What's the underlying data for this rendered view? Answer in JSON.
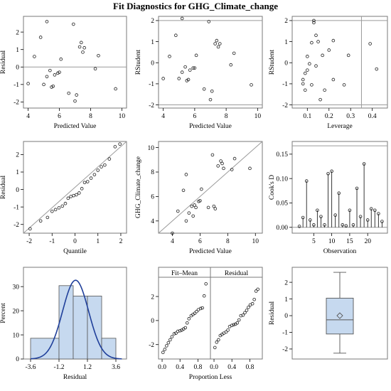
{
  "title": "Fit Diagnostics for GHG_Climate_change",
  "colors": {
    "frame": "#7a7a7a",
    "ref": "#9a9a9a",
    "marker": "#222222",
    "hist_fill": "#c6d9ef",
    "hist_stroke": "#555555",
    "curve": "#1f3f9a"
  },
  "chart_data": [
    {
      "id": "p1",
      "type": "scatter",
      "ylabel": "Residual",
      "xlabel": "Predicted Value",
      "xlim": [
        3.7,
        10.3
      ],
      "ylim": [
        -2.35,
        2.9
      ],
      "xticks": [
        4,
        6,
        8,
        10
      ],
      "yticks": [
        -2,
        -1,
        0,
        1,
        2
      ],
      "hlines": [
        0
      ],
      "points": [
        [
          4.0,
          -0.95
        ],
        [
          4.4,
          0.6
        ],
        [
          4.8,
          1.7
        ],
        [
          5.0,
          -1.0
        ],
        [
          5.2,
          2.6
        ],
        [
          5.2,
          -0.55
        ],
        [
          5.4,
          -0.2
        ],
        [
          5.5,
          -1.15
        ],
        [
          5.6,
          -1.1
        ],
        [
          5.7,
          -0.45
        ],
        [
          5.9,
          -0.35
        ],
        [
          6.0,
          -0.3
        ],
        [
          6.1,
          0.45
        ],
        [
          6.6,
          -1.5
        ],
        [
          6.9,
          2.45
        ],
        [
          7.0,
          -1.95
        ],
        [
          7.1,
          -1.6
        ],
        [
          7.3,
          1.15
        ],
        [
          7.4,
          1.4
        ],
        [
          7.5,
          0.85
        ],
        [
          7.6,
          1.1
        ],
        [
          8.3,
          -0.1
        ],
        [
          8.5,
          0.65
        ],
        [
          9.6,
          -1.25
        ]
      ]
    },
    {
      "id": "p2",
      "type": "scatter",
      "ylabel": "RStudent",
      "xlabel": "Predicted Value",
      "xlim": [
        3.7,
        10.3
      ],
      "ylim": [
        -2.15,
        2.2
      ],
      "xticks": [
        4,
        6,
        8,
        10
      ],
      "yticks": [
        -2,
        -1,
        0,
        1,
        2
      ],
      "hlines": [
        -2,
        2
      ],
      "points": [
        [
          4.0,
          -0.75
        ],
        [
          4.4,
          0.3
        ],
        [
          4.8,
          1.3
        ],
        [
          5.0,
          -0.75
        ],
        [
          5.2,
          2.1
        ],
        [
          5.2,
          -0.45
        ],
        [
          5.4,
          -0.2
        ],
        [
          5.5,
          -0.85
        ],
        [
          5.6,
          -0.8
        ],
        [
          5.7,
          -0.35
        ],
        [
          5.9,
          -0.25
        ],
        [
          6.0,
          -0.25
        ],
        [
          6.1,
          0.35
        ],
        [
          6.6,
          -1.25
        ],
        [
          6.9,
          1.95
        ],
        [
          7.0,
          -1.75
        ],
        [
          7.1,
          -1.35
        ],
        [
          7.3,
          0.9
        ],
        [
          7.4,
          1.05
        ],
        [
          7.5,
          0.75
        ],
        [
          7.6,
          0.9
        ],
        [
          8.3,
          -0.1
        ],
        [
          8.5,
          0.45
        ],
        [
          9.6,
          -1.05
        ]
      ]
    },
    {
      "id": "p3",
      "type": "scatter",
      "ylabel": "RStudent",
      "xlabel": "Leverage",
      "xlim": [
        0.03,
        0.47
      ],
      "ylim": [
        -2.15,
        2.2
      ],
      "xticks": [
        0.1,
        0.2,
        0.3,
        0.4
      ],
      "yticks": [
        -2,
        -1,
        0,
        1,
        2
      ],
      "hlines": [
        -2,
        2
      ],
      "vlines": [
        0.35
      ],
      "points": [
        [
          0.08,
          -1.0
        ],
        [
          0.08,
          -0.8
        ],
        [
          0.09,
          -0.5
        ],
        [
          0.09,
          -1.3
        ],
        [
          0.1,
          -0.35
        ],
        [
          0.1,
          0.3
        ],
        [
          0.11,
          -0.05
        ],
        [
          0.12,
          -1.05
        ],
        [
          0.12,
          0.95
        ],
        [
          0.13,
          2.0
        ],
        [
          0.13,
          1.9
        ],
        [
          0.14,
          1.3
        ],
        [
          0.14,
          -0.15
        ],
        [
          0.15,
          1.0
        ],
        [
          0.16,
          -1.75
        ],
        [
          0.17,
          0.35
        ],
        [
          0.18,
          -1.3
        ],
        [
          0.2,
          0.6
        ],
        [
          0.22,
          -0.8
        ],
        [
          0.22,
          1.05
        ],
        [
          0.27,
          -1.05
        ],
        [
          0.29,
          0.35
        ],
        [
          0.39,
          0.9
        ],
        [
          0.42,
          -0.3
        ]
      ]
    },
    {
      "id": "p4",
      "type": "scatter",
      "ylabel": "Residual",
      "xlabel": "Quantile",
      "xlim": [
        -2.25,
        2.25
      ],
      "ylim": [
        -2.5,
        2.75
      ],
      "xticks": [
        -2,
        -1,
        0,
        1,
        2
      ],
      "yticks": [
        -2,
        -1,
        0,
        1,
        2
      ],
      "refline": [
        [
          -2.25,
          -2.5
        ],
        [
          2.25,
          2.75
        ]
      ],
      "points": [
        [
          -1.96,
          -2.25
        ],
        [
          -1.5,
          -1.8
        ],
        [
          -1.2,
          -1.6
        ],
        [
          -1.0,
          -1.25
        ],
        [
          -0.85,
          -1.15
        ],
        [
          -0.7,
          -1.05
        ],
        [
          -0.55,
          -0.95
        ],
        [
          -0.42,
          -0.8
        ],
        [
          -0.3,
          -0.5
        ],
        [
          -0.18,
          -0.4
        ],
        [
          -0.06,
          -0.35
        ],
        [
          0.06,
          -0.3
        ],
        [
          0.18,
          -0.2
        ],
        [
          0.3,
          0.05
        ],
        [
          0.42,
          0.4
        ],
        [
          0.55,
          0.45
        ],
        [
          0.7,
          0.65
        ],
        [
          0.85,
          0.85
        ],
        [
          1.0,
          1.1
        ],
        [
          1.15,
          1.3
        ],
        [
          1.3,
          1.4
        ],
        [
          1.5,
          1.75
        ],
        [
          1.75,
          2.45
        ],
        [
          1.96,
          2.6
        ]
      ]
    },
    {
      "id": "p5",
      "type": "scatter",
      "ylabel": "GHG_Climate_change",
      "xlabel": "Predicted Value",
      "xlim": [
        3.0,
        10.5
      ],
      "ylim": [
        3.0,
        10.5
      ],
      "xticks": [
        4,
        6,
        8,
        10
      ],
      "yticks": [
        4,
        6,
        8,
        10
      ],
      "refline": [
        [
          3.0,
          3.0
        ],
        [
          10.5,
          10.5
        ]
      ],
      "points": [
        [
          4.0,
          3.0
        ],
        [
          4.4,
          4.8
        ],
        [
          4.8,
          6.5
        ],
        [
          5.0,
          7.8
        ],
        [
          5.0,
          4.0
        ],
        [
          5.2,
          4.65
        ],
        [
          5.4,
          5.2
        ],
        [
          5.5,
          4.4
        ],
        [
          5.6,
          5.3
        ],
        [
          5.7,
          5.1
        ],
        [
          5.9,
          5.6
        ],
        [
          6.0,
          5.65
        ],
        [
          6.1,
          6.6
        ],
        [
          6.6,
          5.1
        ],
        [
          6.9,
          9.4
        ],
        [
          7.0,
          5.2
        ],
        [
          7.1,
          5.0
        ],
        [
          7.3,
          8.5
        ],
        [
          7.5,
          8.9
        ],
        [
          7.6,
          8.7
        ],
        [
          7.7,
          8.3
        ],
        [
          8.3,
          8.2
        ],
        [
          8.5,
          9.1
        ],
        [
          9.6,
          8.3
        ]
      ]
    },
    {
      "id": "p6",
      "type": "needle",
      "ylabel": "Cook's D",
      "xlabel": "Observation",
      "xlim": [
        -1,
        25.5
      ],
      "ylim": [
        -0.012,
        0.176
      ],
      "xticks": [
        5,
        10,
        15,
        20
      ],
      "yticks": [
        0.0,
        0.05,
        0.1,
        0.15
      ],
      "hlines": [
        0.0
      ],
      "toplines": [
        0.167
      ],
      "x": [
        1,
        2,
        3,
        4,
        5,
        6,
        7,
        8,
        9,
        10,
        11,
        12,
        13,
        14,
        15,
        16,
        17,
        18,
        19,
        20,
        21,
        22,
        23,
        24
      ],
      "values": [
        0.002,
        0.02,
        0.095,
        0.015,
        0.005,
        0.035,
        0.022,
        0.005,
        0.11,
        0.115,
        0.025,
        0.07,
        0.005,
        0.003,
        0.035,
        0.005,
        0.08,
        0.022,
        0.13,
        0.015,
        0.038,
        0.035,
        0.028,
        0.012
      ]
    },
    {
      "id": "p7",
      "type": "histogram",
      "ylabel": "Percent",
      "xlabel": "Residual",
      "xlim": [
        -4.2,
        4.5
      ],
      "ylim": [
        0,
        38
      ],
      "xticks": [
        -3.6,
        -1.2,
        1.2,
        3.6
      ],
      "xtick_labels": [
        "-3.6",
        "-1.2",
        "1.2",
        "3.6"
      ],
      "yticks": [
        0,
        10,
        20,
        30
      ],
      "bins": [
        [
          -3.6,
          -1.2,
          8.6
        ],
        [
          -1.2,
          0,
          30.4
        ],
        [
          0,
          1.2,
          26.1
        ],
        [
          1.2,
          2.4,
          26.1
        ],
        [
          2.4,
          3.6,
          8.6
        ]
      ],
      "normal_curve": {
        "mean": 0.2,
        "sd": 1.1,
        "scale": 2.4
      }
    },
    {
      "id": "p8",
      "type": "rf_spread",
      "xlabel": "Proportion Less",
      "panel_labels": [
        "Fit–Mean",
        "Residual"
      ],
      "xlim": [
        -0.08,
        1.08
      ],
      "ylim": [
        -3.2,
        3.6
      ],
      "xticks": [
        0.0,
        0.4,
        0.8
      ],
      "xtick_labels": [
        "0.0",
        "0.4",
        "0.8"
      ],
      "yticks": [
        -2,
        0,
        2
      ],
      "fit_mean": [
        [
          0.02,
          -2.65
        ],
        [
          0.06,
          -2.4
        ],
        [
          0.1,
          -2.1
        ],
        [
          0.14,
          -1.85
        ],
        [
          0.18,
          -1.6
        ],
        [
          0.22,
          -1.35
        ],
        [
          0.27,
          -1.1
        ],
        [
          0.31,
          -1.05
        ],
        [
          0.35,
          -0.9
        ],
        [
          0.4,
          -0.85
        ],
        [
          0.44,
          -0.8
        ],
        [
          0.48,
          -0.7
        ],
        [
          0.52,
          -0.6
        ],
        [
          0.56,
          -0.2
        ],
        [
          0.6,
          0.15
        ],
        [
          0.65,
          0.4
        ],
        [
          0.69,
          0.5
        ],
        [
          0.73,
          0.6
        ],
        [
          0.77,
          0.75
        ],
        [
          0.81,
          0.9
        ],
        [
          0.86,
          1.0
        ],
        [
          0.9,
          1.05
        ],
        [
          0.94,
          2.05
        ],
        [
          0.98,
          3.05
        ]
      ],
      "residual": [
        [
          0.02,
          -2.25
        ],
        [
          0.06,
          -1.8
        ],
        [
          0.1,
          -1.6
        ],
        [
          0.14,
          -1.25
        ],
        [
          0.18,
          -1.15
        ],
        [
          0.22,
          -1.05
        ],
        [
          0.27,
          -0.95
        ],
        [
          0.31,
          -0.8
        ],
        [
          0.35,
          -0.5
        ],
        [
          0.4,
          -0.4
        ],
        [
          0.44,
          -0.35
        ],
        [
          0.48,
          -0.3
        ],
        [
          0.52,
          -0.2
        ],
        [
          0.56,
          0.05
        ],
        [
          0.6,
          0.4
        ],
        [
          0.65,
          0.45
        ],
        [
          0.69,
          0.65
        ],
        [
          0.73,
          0.85
        ],
        [
          0.77,
          1.1
        ],
        [
          0.81,
          1.3
        ],
        [
          0.86,
          1.4
        ],
        [
          0.9,
          1.75
        ],
        [
          0.94,
          2.45
        ],
        [
          0.98,
          2.6
        ]
      ]
    },
    {
      "id": "p9",
      "type": "box",
      "ylabel": "Residual",
      "xlim": [
        0,
        1
      ],
      "ylim": [
        -2.6,
        2.9
      ],
      "yticks": [
        -2,
        -1,
        0,
        1,
        2
      ],
      "box": {
        "min": -2.25,
        "q1": -1.1,
        "median": -0.25,
        "mean": 0.0,
        "q3": 1.05,
        "max": 2.6
      }
    }
  ]
}
